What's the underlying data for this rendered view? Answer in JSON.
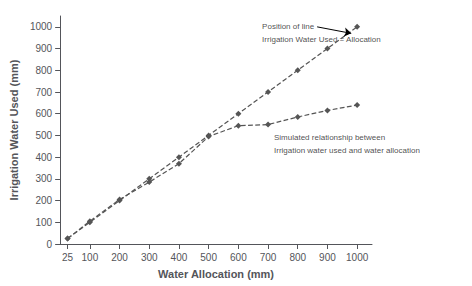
{
  "chart_data": {
    "type": "line",
    "xlabel": "Water Allocation (mm)",
    "ylabel": "Irrigation Water Used (mm)",
    "x": [
      25,
      100,
      200,
      300,
      400,
      500,
      600,
      700,
      800,
      900,
      1000
    ],
    "series": [
      {
        "values": [
          25,
          100,
          200,
          300,
          400,
          500,
          600,
          700,
          800,
          900,
          1000
        ],
        "color": "#555555",
        "marker": "diamond",
        "line_style": "dashed"
      },
      {
        "values": [
          25,
          105,
          205,
          285,
          370,
          495,
          545,
          550,
          585,
          615,
          640
        ],
        "color": "#555555",
        "marker": "diamond",
        "line_style": "dashed"
      }
    ],
    "xlim": [
      0,
      1050
    ],
    "ylim": [
      0,
      1050
    ],
    "xticks": [
      25,
      100,
      200,
      300,
      400,
      500,
      600,
      700,
      800,
      900,
      1000
    ],
    "yticks": [
      0,
      100,
      200,
      300,
      400,
      500,
      600,
      700,
      800,
      900,
      1000
    ],
    "grid": false,
    "annotations": [
      {
        "text": "Position of line",
        "x": 680,
        "y": 1000,
        "arrow_to": [
          980,
          970
        ]
      },
      {
        "text": "Irrigation Water Used = Allocation",
        "x": 680,
        "y": 940
      },
      {
        "text": "Simulated relationship between",
        "x": 720,
        "y": 490
      },
      {
        "text": "Irrigation water used and water allocation",
        "x": 720,
        "y": 430
      }
    ]
  }
}
